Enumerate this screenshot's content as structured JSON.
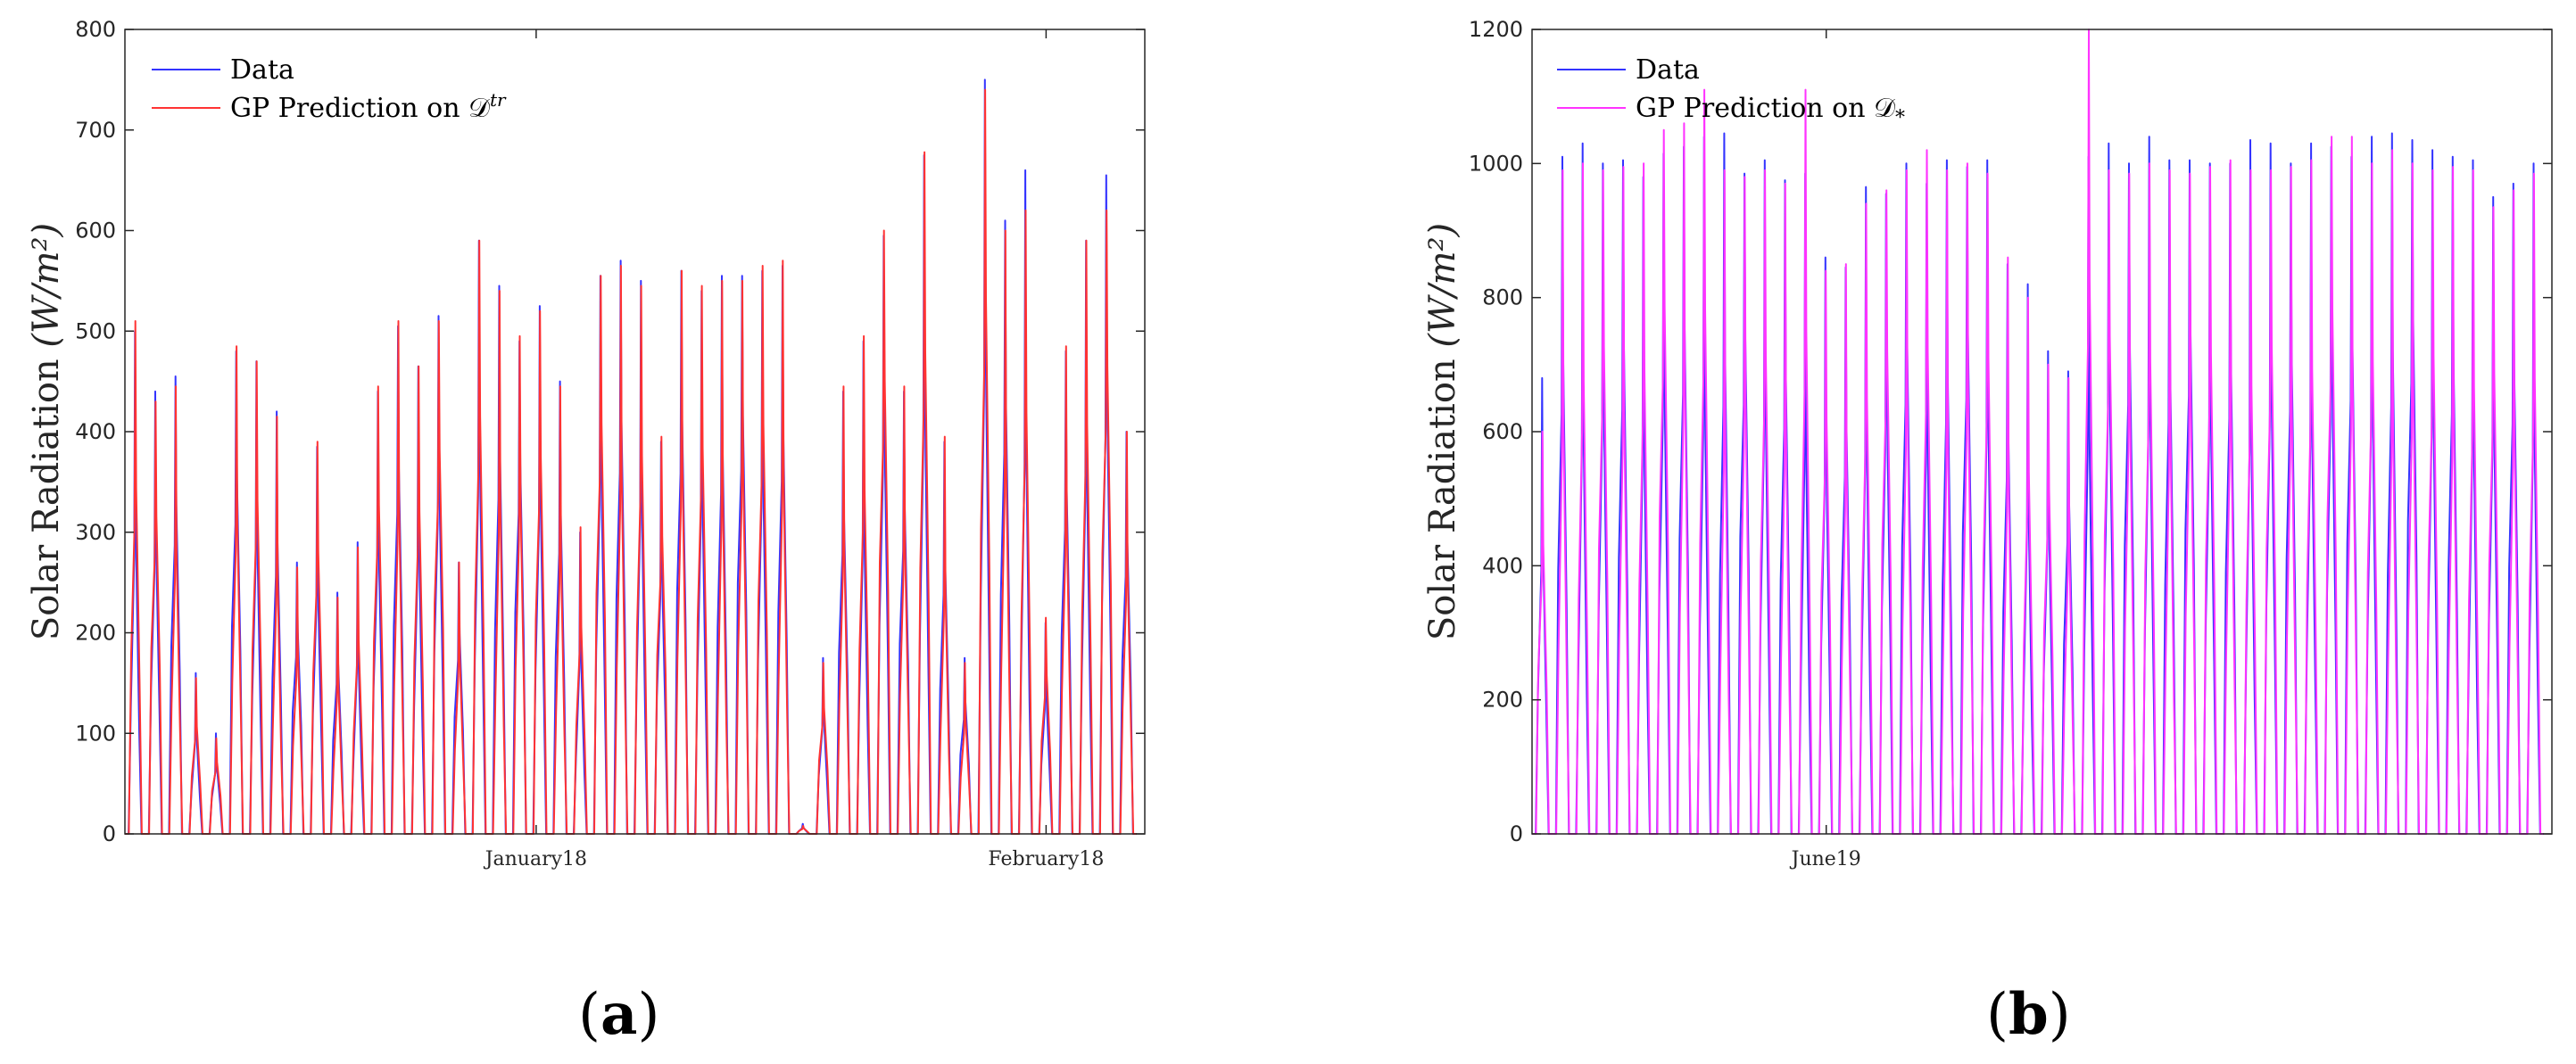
{
  "chart_data": [
    {
      "type": "line",
      "panel_label": "a",
      "ylabel_main": "Solar Radiation ",
      "ylabel_units": "(W/m²)",
      "ylim": [
        0,
        800
      ],
      "yticks": [
        0,
        100,
        200,
        300,
        400,
        500,
        600,
        700,
        800
      ],
      "xticks": [
        {
          "label": "January18",
          "day": 25
        },
        {
          "label": "February18",
          "day": 56
        }
      ],
      "total_days": 62,
      "grid": false,
      "legend_position": "top-left",
      "legend": [
        {
          "label": "Data",
          "color": "#3333ff"
        },
        {
          "label": "GP Prediction on 𝒟",
          "sup": "tr",
          "color": "#ff3333"
        }
      ],
      "series": [
        {
          "name": "Data",
          "color": "#3333ff",
          "daily_peaks": [
            500,
            440,
            455,
            160,
            100,
            480,
            470,
            420,
            270,
            385,
            240,
            290,
            440,
            505,
            465,
            515,
            270,
            590,
            545,
            490,
            525,
            450,
            300,
            555,
            570,
            550,
            390,
            560,
            540,
            555,
            555,
            560,
            565,
            10,
            175,
            440,
            490,
            595,
            440,
            675,
            390,
            175,
            750,
            610,
            660,
            210,
            480,
            590,
            655,
            400
          ]
        },
        {
          "name": "GP Prediction on Dtr",
          "color": "#ff3333",
          "daily_peaks": [
            510,
            430,
            445,
            155,
            95,
            485,
            470,
            415,
            265,
            390,
            235,
            285,
            445,
            510,
            465,
            510,
            270,
            590,
            540,
            495,
            520,
            445,
            305,
            555,
            565,
            545,
            395,
            560,
            545,
            550,
            550,
            565,
            570,
            8,
            170,
            445,
            495,
            600,
            445,
            678,
            395,
            170,
            740,
            600,
            620,
            215,
            485,
            590,
            620,
            400
          ]
        }
      ]
    },
    {
      "type": "line",
      "panel_label": "b",
      "ylabel_main": "Solar Radiation ",
      "ylabel_units": "(W/m²)",
      "ylim": [
        0,
        1200
      ],
      "yticks": [
        0,
        200,
        400,
        600,
        800,
        1000,
        1200
      ],
      "xticks": [
        {
          "label": "June19",
          "day": 15
        }
      ],
      "total_days": 52,
      "grid": false,
      "legend_position": "top-left",
      "legend": [
        {
          "label": "Data",
          "color": "#3333ff"
        },
        {
          "label": "GP Prediction on 𝒟",
          "sub": "*",
          "color": "#ff33ff"
        }
      ],
      "series": [
        {
          "name": "Data",
          "color": "#3333ff",
          "daily_peaks": [
            680,
            1010,
            1030,
            1000,
            1005,
            980,
            1015,
            1025,
            1040,
            1045,
            985,
            1005,
            975,
            985,
            860,
            845,
            965,
            955,
            1000,
            970,
            1005,
            995,
            1005,
            850,
            820,
            720,
            690,
            1010,
            1030,
            1000,
            1040,
            1005,
            1005,
            1000,
            1000,
            1035,
            1030,
            1000,
            1030,
            1025,
            1010,
            1040,
            1045,
            1035,
            1020,
            1010,
            1005,
            950,
            970,
            1000
          ]
        },
        {
          "name": "GP Prediction on D*",
          "color": "#ff33ff",
          "daily_peaks": [
            600,
            990,
            1000,
            990,
            995,
            1000,
            1050,
            1060,
            1110,
            990,
            980,
            990,
            970,
            1110,
            840,
            850,
            940,
            960,
            990,
            1020,
            990,
            1000,
            985,
            860,
            800,
            700,
            680,
            1200,
            990,
            985,
            1000,
            990,
            985,
            995,
            1005,
            990,
            990,
            995,
            1005,
            1040,
            1040,
            1000,
            1020,
            1000,
            990,
            995,
            990,
            935,
            960,
            985
          ]
        }
      ]
    }
  ],
  "captions": [
    {
      "letter": "a"
    },
    {
      "letter": "b"
    }
  ]
}
